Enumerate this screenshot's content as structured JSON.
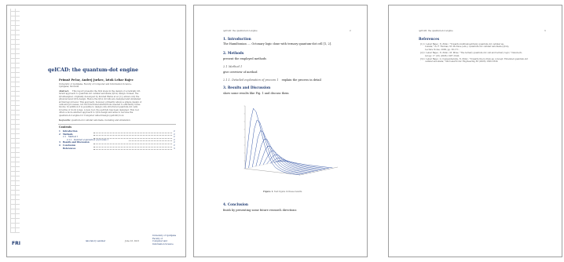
{
  "page1": {
    "title": "qeICAD: the quantum-dot engine",
    "authors": "Primož Pečar, Andrej Jurkec, Iztok Lebar Bajec",
    "affiliation": [
      "University of Ljubljana, Faculty of Computer and Information Science,",
      "Ljubljana, Slovenia"
    ],
    "abstract_label": "Abstract.",
    "abstract_lines": [
      "This report presents the first steps in the design of a radically dif-",
      "ferent approach to quantum-dot cellular automata (QCA) design. Indeed, the",
      "QCADesigner, originally developed by Konrad Walus et al. [1], allows only the",
      "physical level QCA design. Hence the QCA circuits are designed and simulated",
      "at that layout level. This approach, however, primarily allows a simple design of",
      "cells and processes, not the functional abstractions needed to efficiently reuse",
      "blocks. In addition it is possible to design only structured quantum-dot cells",
      "in terms of clock zones. A new tool, the qeICAD, has been designed. This tool",
      "offers a more abstract approach to QCA design and aims to become the",
      "quantum-dot engine for Computer Aided Design (qeICAD) tool."
    ],
    "keywords_label": "Keywords:",
    "keywords": "quantum-dot cellular automata, modeling and simulation",
    "toc_title": "Contents",
    "toc": [
      {
        "num": "1",
        "label": "Introduction",
        "page": "2",
        "level": 0
      },
      {
        "num": "2",
        "label": "Methods",
        "page": "2",
        "level": 0
      },
      {
        "num": "2.1",
        "label": "Method 1",
        "page": "2",
        "level": 1
      },
      {
        "num": "2.1.1",
        "label": "Detailed explanation of process 1",
        "page": "2",
        "level": 2
      },
      {
        "num": "3",
        "label": "Results and Discussion",
        "page": "2",
        "level": 0
      },
      {
        "num": "4",
        "label": "Conclusion",
        "page": "2",
        "level": 0
      },
      {
        "num": "",
        "label": "References",
        "page": "3",
        "level": 0
      }
    ],
    "footer_left": "laboratory seminar",
    "footer_mid": "June 23, 2021",
    "footer_right": [
      "University of Ljubljana",
      "Faculty of",
      "Computer and",
      "Information Science"
    ],
    "logo_text": "FRI"
  },
  "page2": {
    "running_head": "qeICAD: the quantum-dot engine",
    "page_number": "2",
    "s1_title": "1. Introduction",
    "s1_text": "The Hamiltonian .... Octonary logic done with ternary quantum-dot cell [1, 2].",
    "s2_title": "2. Methods",
    "s2_text": "present the employed methods",
    "s21_title": "2.1 Method 1",
    "s21_text": "give overview of method",
    "s211_title": "2.1.1. Detailed explanation of process 1",
    "s211_text": "explain the process in detail",
    "s3_title": "3. Results and Discussion",
    "s3_text": "show some results like Fig. 1 and discuss them",
    "figure_caption_label": "Figure 1.",
    "figure_caption": "Text figure in these results",
    "s4_title": "4. Conclusion",
    "s4_text": "finish by presenting some future research directions"
  },
  "page3": {
    "running_head": "qeICAD: the quantum-dot engine",
    "page_number": "3",
    "ref_title": "References",
    "refs": [
      [
        "[1]  I. Lebar Bajec, N. Zimic, \"Towards multivalued/fuzzy quantum-dot cellular au-",
        "tomata,\" in: F. Thomas, M. Morisue (eds.), Quantum-dot cellular automata (QCA),",
        "Lecture Notes, 2009, pp. 56-171."
      ],
      [
        "[2]  I. Lebar Bajec, N. Zimic, M. Mraz, \"The ternary quantum-dot cell and ternary logic,\" Nanotech-",
        "nology 17 (16) (2006) 1937-1942."
      ],
      [
        "[3]  I. Lebar Bajec, G. Cauwenberghs, N. Zimic, \"Towards the bottom-up concept: Extended quantum-dot",
        "cellular automata,\" Microelectronic Engineering 83 (2006) 1826-1829."
      ]
    ]
  },
  "chart_data": {
    "type": "line",
    "title": "",
    "xlabel": "",
    "ylabel": "",
    "description_series_count": 10,
    "x": [
      0,
      1,
      2,
      3,
      4,
      5,
      6,
      7,
      8,
      9,
      10,
      11,
      12,
      13,
      14,
      15,
      16,
      17,
      18,
      19,
      20
    ],
    "series": [
      {
        "values": [
          0,
          1.6,
          3.1,
          3.9,
          3.7,
          3.1,
          2.4,
          1.7,
          1.2,
          0.8,
          0.5,
          0.3,
          0.2,
          0.12,
          0.07,
          0.04,
          0.02,
          0.01,
          0.005,
          0.002,
          0
        ]
      },
      {
        "values": [
          0,
          1.2,
          2.5,
          3.1,
          3.0,
          2.5,
          1.9,
          1.4,
          0.9,
          0.6,
          0.4,
          0.25,
          0.15,
          0.09,
          0.05,
          0.03,
          0.02,
          0.01,
          0.005,
          0.002,
          0
        ]
      },
      {
        "values": [
          0,
          0.9,
          1.9,
          2.4,
          2.3,
          1.9,
          1.5,
          1.1,
          0.7,
          0.5,
          0.3,
          0.2,
          0.12,
          0.07,
          0.04,
          0.02,
          0.01,
          0.005,
          0.002,
          0.001,
          0
        ]
      },
      {
        "values": [
          0,
          0.7,
          1.4,
          1.8,
          1.8,
          1.5,
          1.1,
          0.8,
          0.55,
          0.37,
          0.24,
          0.15,
          0.09,
          0.05,
          0.03,
          0.02,
          0.01,
          0.005,
          0.002,
          0.001,
          0
        ]
      },
      {
        "values": [
          0,
          0.5,
          1.0,
          1.3,
          1.3,
          1.1,
          0.85,
          0.6,
          0.42,
          0.28,
          0.18,
          0.11,
          0.07,
          0.04,
          0.02,
          0.01,
          0.005,
          0.002,
          0.001,
          0,
          0
        ]
      },
      {
        "values": [
          0,
          0.35,
          0.7,
          0.95,
          0.95,
          0.8,
          0.62,
          0.45,
          0.31,
          0.2,
          0.13,
          0.08,
          0.05,
          0.03,
          0.02,
          0.01,
          0.005,
          0.002,
          0.001,
          0,
          0
        ]
      },
      {
        "values": [
          0,
          0.25,
          0.5,
          0.65,
          0.66,
          0.56,
          0.43,
          0.31,
          0.21,
          0.14,
          0.09,
          0.06,
          0.035,
          0.02,
          0.01,
          0.005,
          0.002,
          0.001,
          0,
          0,
          0
        ]
      },
      {
        "values": [
          0,
          0.15,
          0.3,
          0.4,
          0.41,
          0.35,
          0.27,
          0.2,
          0.14,
          0.09,
          0.06,
          0.04,
          0.02,
          0.01,
          0.005,
          0.002,
          0.001,
          0,
          0,
          0,
          0
        ]
      },
      {
        "values": [
          0,
          0.08,
          0.16,
          0.22,
          0.22,
          0.19,
          0.15,
          0.11,
          0.08,
          0.05,
          0.03,
          0.02,
          0.01,
          0.005,
          0.002,
          0.001,
          0,
          0,
          0,
          0,
          0
        ]
      },
      {
        "values": [
          0,
          0.03,
          0.06,
          0.08,
          0.08,
          0.07,
          0.05,
          0.04,
          0.03,
          0.02,
          0.01,
          0.005,
          0.002,
          0.001,
          0,
          0,
          0,
          0,
          0,
          0,
          0
        ]
      }
    ],
    "ylim": [
      0,
      4
    ],
    "grid": false,
    "line_color": "#3a5aa8"
  }
}
